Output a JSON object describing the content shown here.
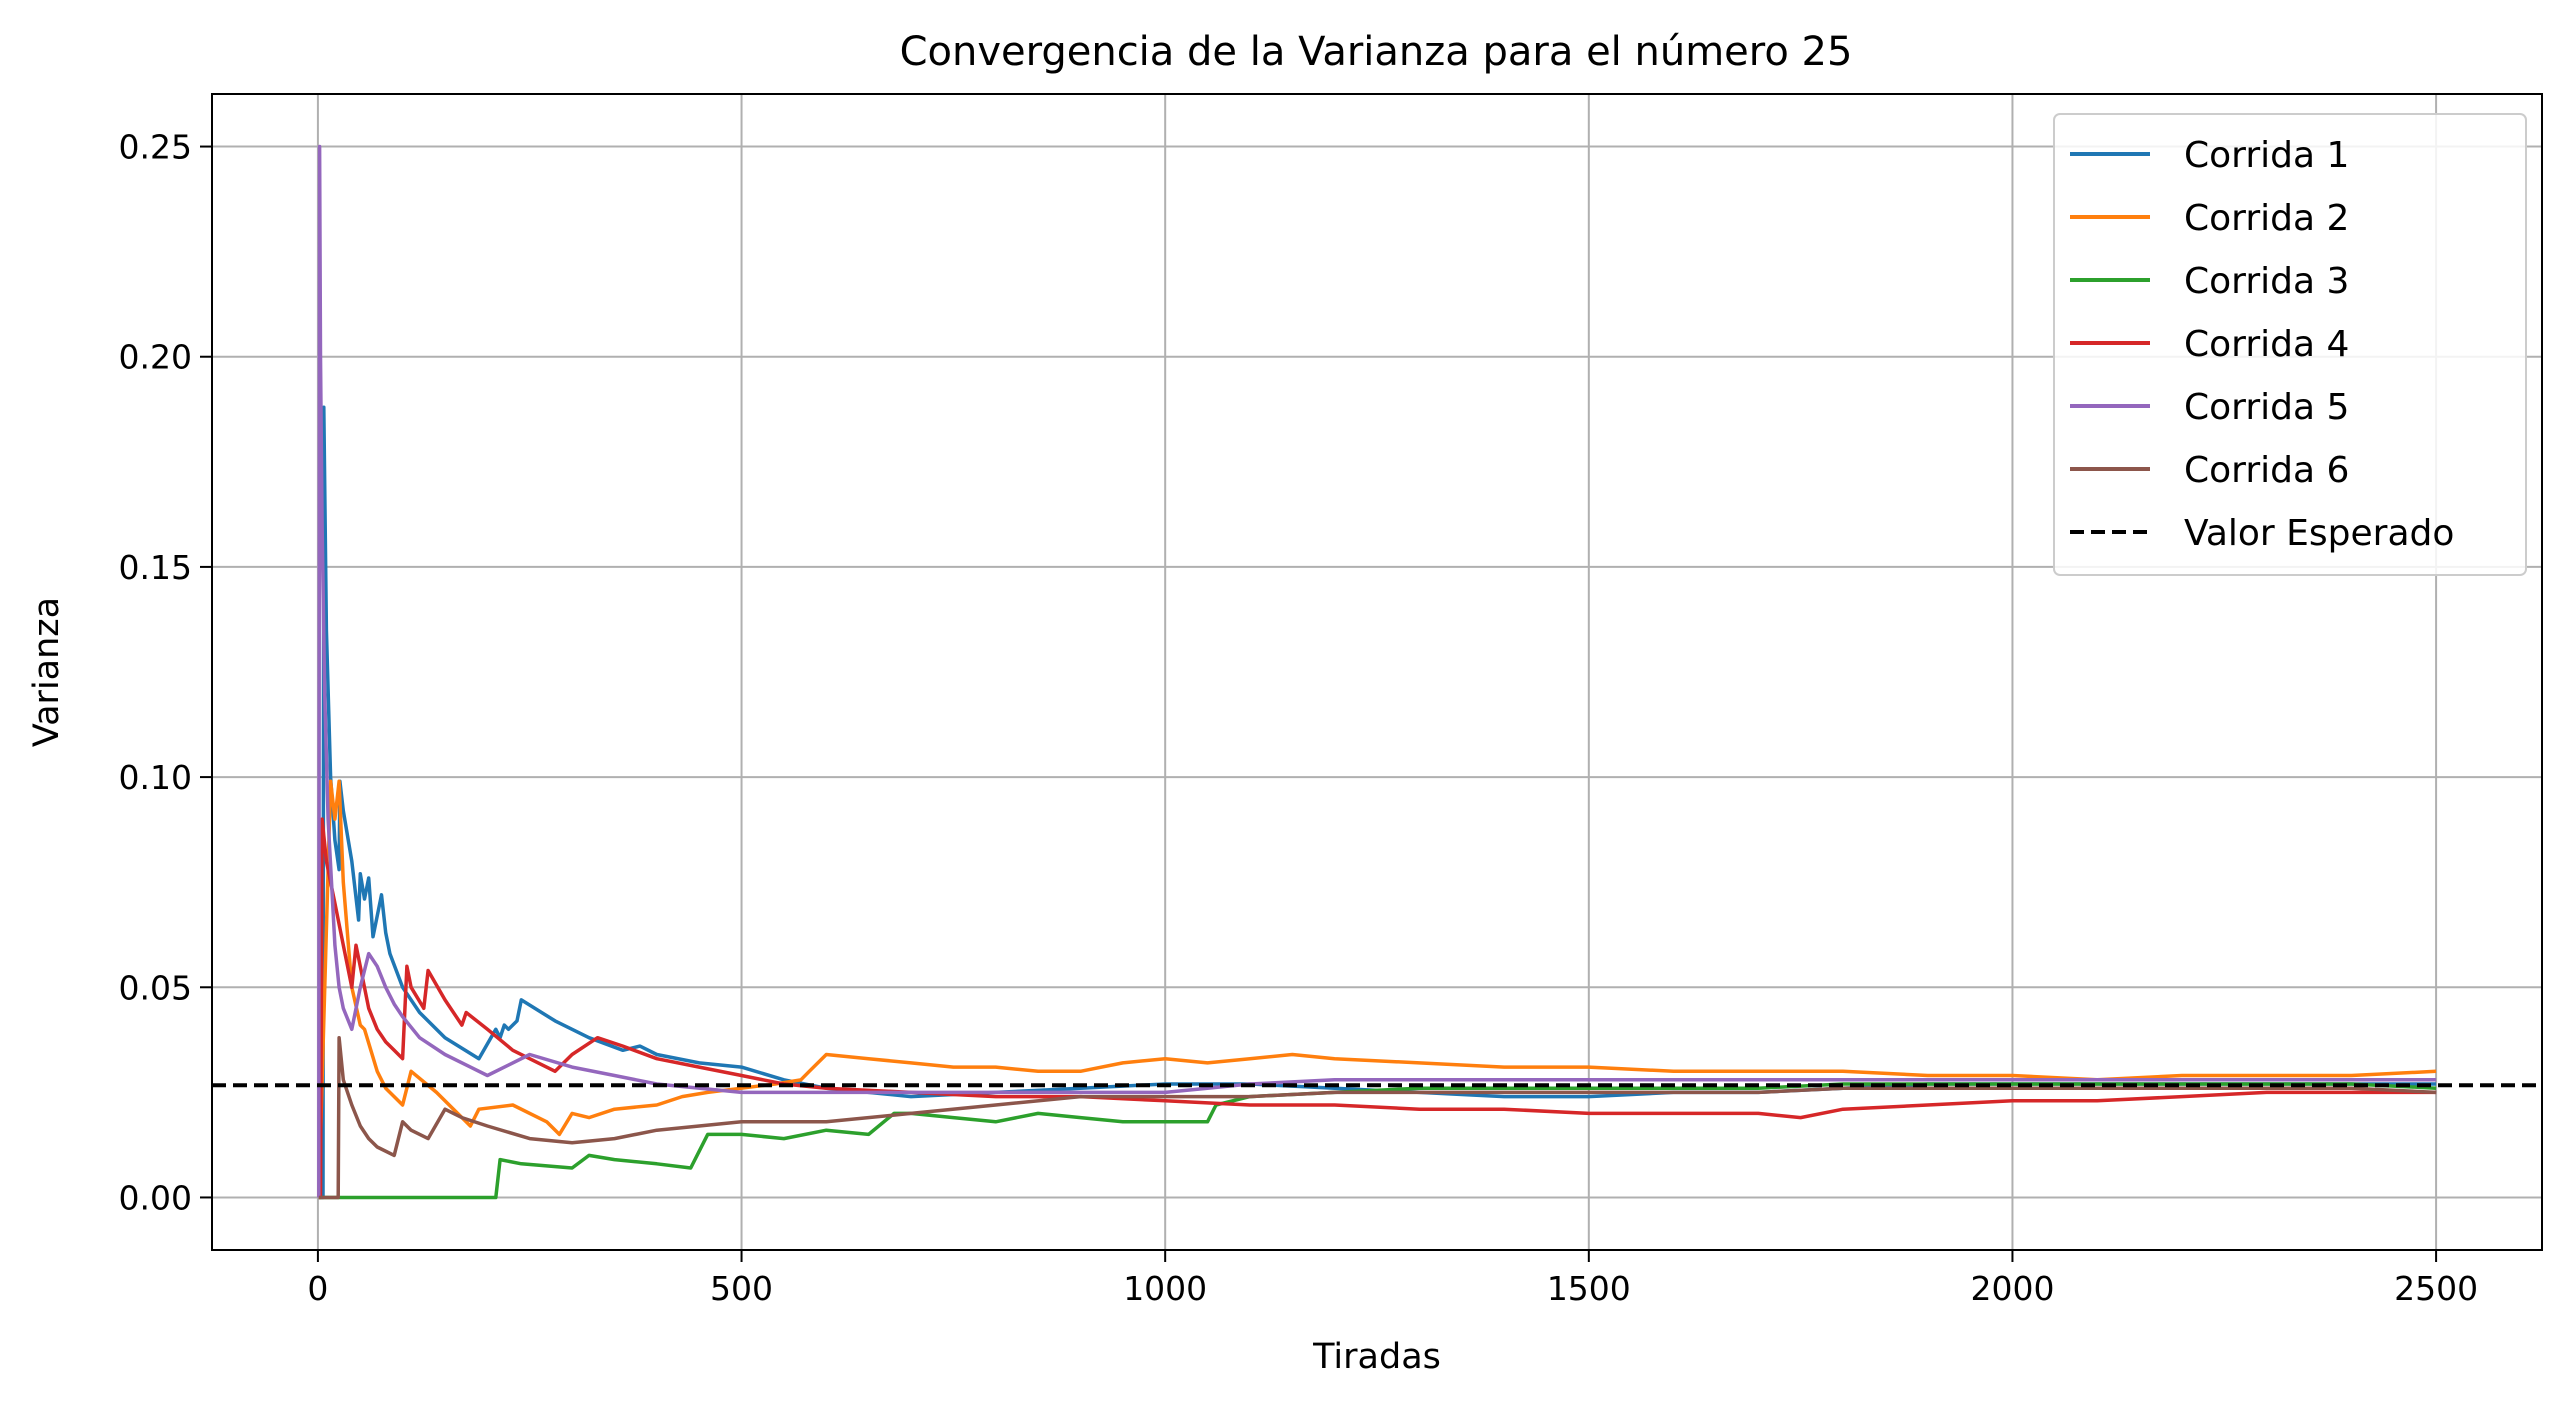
{
  "chart_data": {
    "type": "line",
    "title": "Convergencia de la Varianza para el número 25",
    "xlabel": "Tiradas",
    "ylabel": "Varianza",
    "xlim": [
      -125,
      2625
    ],
    "ylim": [
      -0.0125,
      0.2625
    ],
    "xticks": [
      0,
      500,
      1000,
      1500,
      2000,
      2500
    ],
    "xtick_labels": [
      "0",
      "500",
      "1000",
      "1500",
      "2000",
      "2500"
    ],
    "yticks": [
      0.0,
      0.05,
      0.1,
      0.15,
      0.2,
      0.25
    ],
    "ytick_labels": [
      "0.00",
      "0.05",
      "0.10",
      "0.15",
      "0.20",
      "0.25"
    ],
    "grid": true,
    "legend_position": "top-right",
    "series": [
      {
        "name": "Corrida 1",
        "color": "#1f77b4",
        "x": [
          1,
          6,
          7,
          10,
          15,
          20,
          25,
          26,
          30,
          40,
          48,
          50,
          55,
          60,
          65,
          75,
          80,
          85,
          100,
          120,
          150,
          190,
          210,
          215,
          220,
          225,
          235,
          240,
          280,
          320,
          360,
          380,
          400,
          450,
          500,
          550,
          600,
          650,
          700,
          800,
          900,
          1000,
          1100,
          1200,
          1300,
          1400,
          1500,
          1600,
          1700,
          1800,
          1900,
          2000,
          2100,
          2200,
          2300,
          2400,
          2500
        ],
        "values": [
          0,
          0,
          0.188,
          0.135,
          0.1,
          0.085,
          0.078,
          0.099,
          0.092,
          0.08,
          0.066,
          0.077,
          0.071,
          0.076,
          0.062,
          0.072,
          0.063,
          0.058,
          0.05,
          0.044,
          0.038,
          0.033,
          0.04,
          0.038,
          0.041,
          0.04,
          0.042,
          0.047,
          0.042,
          0.038,
          0.035,
          0.036,
          0.034,
          0.032,
          0.031,
          0.028,
          0.026,
          0.025,
          0.024,
          0.025,
          0.026,
          0.027,
          0.027,
          0.026,
          0.025,
          0.024,
          0.024,
          0.025,
          0.025,
          0.026,
          0.027,
          0.027,
          0.027,
          0.027,
          0.027,
          0.027,
          0.027
        ]
      },
      {
        "name": "Corrida 2",
        "color": "#ff7f0e",
        "x": [
          1,
          15,
          20,
          25,
          30,
          40,
          50,
          55,
          70,
          80,
          100,
          110,
          140,
          160,
          180,
          190,
          230,
          270,
          285,
          300,
          320,
          350,
          400,
          430,
          460,
          500,
          540,
          570,
          580,
          600,
          650,
          700,
          750,
          800,
          850,
          900,
          950,
          1000,
          1050,
          1100,
          1150,
          1200,
          1300,
          1400,
          1500,
          1600,
          1700,
          1800,
          1900,
          2000,
          2100,
          2200,
          2300,
          2400,
          2500
        ],
        "values": [
          0,
          0.099,
          0.09,
          0.099,
          0.075,
          0.05,
          0.041,
          0.04,
          0.03,
          0.026,
          0.022,
          0.03,
          0.025,
          0.021,
          0.017,
          0.021,
          0.022,
          0.018,
          0.015,
          0.02,
          0.019,
          0.021,
          0.022,
          0.024,
          0.025,
          0.026,
          0.027,
          0.028,
          0.03,
          0.034,
          0.033,
          0.032,
          0.031,
          0.031,
          0.03,
          0.03,
          0.032,
          0.033,
          0.032,
          0.033,
          0.034,
          0.033,
          0.032,
          0.031,
          0.031,
          0.03,
          0.03,
          0.03,
          0.029,
          0.029,
          0.028,
          0.029,
          0.029,
          0.029,
          0.03
        ]
      },
      {
        "name": "Corrida 3",
        "color": "#2ca02c",
        "x": [
          1,
          50,
          100,
          150,
          210,
          215,
          240,
          300,
          320,
          350,
          400,
          440,
          450,
          460,
          500,
          550,
          600,
          650,
          680,
          700,
          750,
          800,
          850,
          900,
          950,
          1000,
          1050,
          1060,
          1100,
          1200,
          1300,
          1400,
          1500,
          1600,
          1700,
          1800,
          1900,
          2000,
          2100,
          2200,
          2300,
          2400,
          2500
        ],
        "values": [
          0,
          0,
          0,
          0,
          0,
          0.009,
          0.008,
          0.007,
          0.01,
          0.009,
          0.008,
          0.007,
          0.011,
          0.015,
          0.015,
          0.014,
          0.016,
          0.015,
          0.02,
          0.02,
          0.019,
          0.018,
          0.02,
          0.019,
          0.018,
          0.018,
          0.018,
          0.022,
          0.024,
          0.025,
          0.026,
          0.026,
          0.026,
          0.026,
          0.026,
          0.027,
          0.027,
          0.027,
          0.027,
          0.027,
          0.027,
          0.027,
          0.026
        ]
      },
      {
        "name": "Corrida 4",
        "color": "#d62728",
        "x": [
          1,
          3,
          5,
          10,
          15,
          20,
          30,
          40,
          45,
          60,
          70,
          80,
          90,
          100,
          105,
          110,
          125,
          130,
          150,
          170,
          175,
          200,
          230,
          260,
          280,
          300,
          330,
          360,
          400,
          450,
          500,
          550,
          600,
          700,
          800,
          900,
          1000,
          1100,
          1200,
          1300,
          1400,
          1500,
          1600,
          1700,
          1750,
          1800,
          1900,
          2000,
          2100,
          2200,
          2300,
          2400,
          2500
        ],
        "values": [
          0,
          0,
          0.09,
          0.08,
          0.075,
          0.07,
          0.06,
          0.05,
          0.06,
          0.045,
          0.04,
          0.037,
          0.035,
          0.033,
          0.055,
          0.05,
          0.045,
          0.054,
          0.047,
          0.041,
          0.044,
          0.04,
          0.035,
          0.032,
          0.03,
          0.034,
          0.038,
          0.036,
          0.033,
          0.031,
          0.029,
          0.027,
          0.026,
          0.025,
          0.024,
          0.024,
          0.023,
          0.022,
          0.022,
          0.021,
          0.021,
          0.02,
          0.02,
          0.02,
          0.019,
          0.021,
          0.022,
          0.023,
          0.023,
          0.024,
          0.025,
          0.025,
          0.025
        ]
      },
      {
        "name": "Corrida 5",
        "color": "#9467bd",
        "x": [
          1,
          2,
          3,
          5,
          8,
          12,
          20,
          25,
          30,
          40,
          50,
          60,
          70,
          80,
          90,
          100,
          120,
          150,
          180,
          200,
          250,
          300,
          350,
          400,
          500,
          600,
          700,
          800,
          900,
          1000,
          1050,
          1100,
          1200,
          1300,
          1400,
          1500,
          1600,
          1700,
          1800,
          1900,
          2000,
          2100,
          2200,
          2300,
          2400,
          2500
        ],
        "values": [
          0,
          0.25,
          0.2,
          0.16,
          0.12,
          0.09,
          0.06,
          0.05,
          0.045,
          0.04,
          0.05,
          0.058,
          0.055,
          0.05,
          0.046,
          0.043,
          0.038,
          0.034,
          0.031,
          0.029,
          0.034,
          0.031,
          0.029,
          0.027,
          0.025,
          0.025,
          0.025,
          0.025,
          0.025,
          0.025,
          0.026,
          0.027,
          0.028,
          0.028,
          0.028,
          0.028,
          0.028,
          0.028,
          0.028,
          0.028,
          0.028,
          0.028,
          0.028,
          0.028,
          0.028,
          0.028
        ]
      },
      {
        "name": "Corrida 6",
        "color": "#8c564b",
        "x": [
          1,
          10,
          20,
          24,
          25,
          30,
          40,
          50,
          60,
          70,
          90,
          100,
          110,
          130,
          150,
          160,
          170,
          200,
          250,
          300,
          350,
          400,
          450,
          500,
          550,
          600,
          700,
          800,
          900,
          1000,
          1100,
          1200,
          1300,
          1400,
          1500,
          1600,
          1700,
          1800,
          1900,
          2000,
          2100,
          2200,
          2300,
          2400,
          2500
        ],
        "values": [
          0,
          0,
          0,
          0,
          0.038,
          0.028,
          0.022,
          0.017,
          0.014,
          0.012,
          0.01,
          0.018,
          0.016,
          0.014,
          0.021,
          0.02,
          0.019,
          0.017,
          0.014,
          0.013,
          0.014,
          0.016,
          0.017,
          0.018,
          0.018,
          0.018,
          0.02,
          0.022,
          0.024,
          0.024,
          0.024,
          0.025,
          0.025,
          0.025,
          0.025,
          0.025,
          0.025,
          0.026,
          0.026,
          0.026,
          0.026,
          0.026,
          0.026,
          0.026,
          0.025
        ]
      },
      {
        "name": "Valor Esperado",
        "color": "#000000",
        "dashed": true,
        "x": [
          -125,
          2625
        ],
        "values": [
          0.0267,
          0.0267
        ]
      }
    ]
  }
}
